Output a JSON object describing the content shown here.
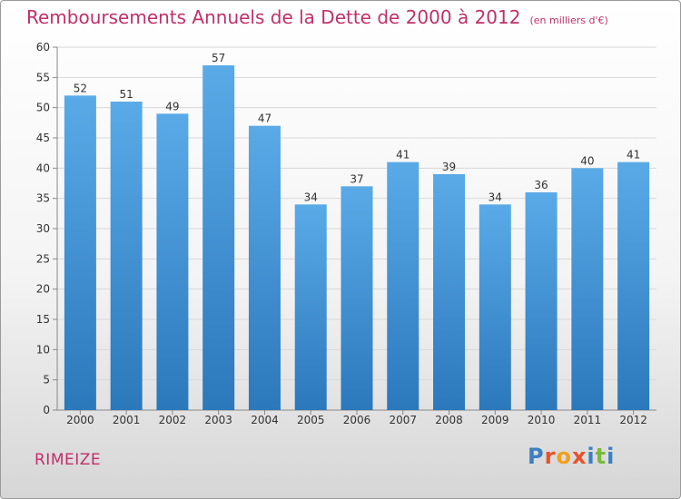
{
  "title": "Remboursements Annuels de la Dette de 2000 à 2012",
  "unit_note": "(en milliers d'€)",
  "town": "RIMEIZE",
  "logo": {
    "text": "Proxiti",
    "letter_colors": [
      "#3b7fc4",
      "#e8522a",
      "#f0a01e",
      "#e8522a",
      "#3b7fc4",
      "#7bb83a",
      "#3b7fc4"
    ]
  },
  "colors": {
    "title": "#c0306a",
    "bar_top": "#5aaae8",
    "bar_bottom": "#2b78bb",
    "grid": "#d8d8d8"
  },
  "chart_data": {
    "type": "bar",
    "categories": [
      "2000",
      "2001",
      "2002",
      "2003",
      "2004",
      "2005",
      "2006",
      "2007",
      "2008",
      "2009",
      "2010",
      "2011",
      "2012"
    ],
    "values": [
      52,
      51,
      49,
      57,
      47,
      34,
      37,
      41,
      39,
      34,
      36,
      40,
      41
    ],
    "ylim": [
      0,
      60
    ],
    "yticks": [
      0,
      5,
      10,
      15,
      20,
      25,
      30,
      35,
      40,
      45,
      50,
      55,
      60
    ],
    "grid": true,
    "data_labels": true
  }
}
